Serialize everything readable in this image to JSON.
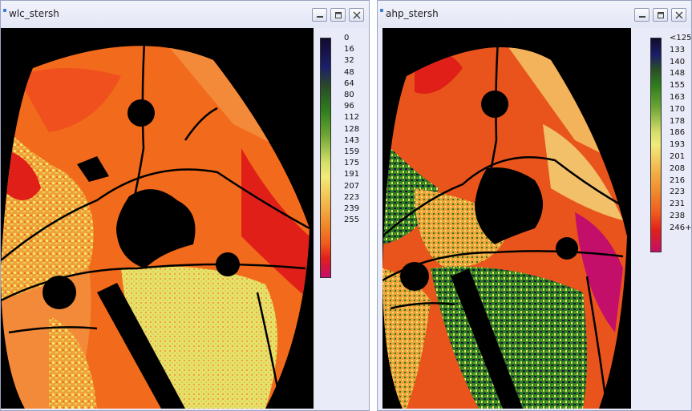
{
  "windows": [
    {
      "title": "wlc_stersh",
      "legend": [
        "0",
        "16",
        "32",
        "48",
        "64",
        "80",
        "96",
        "112",
        "128",
        "143",
        "159",
        "175",
        "191",
        "207",
        "223",
        "239",
        "255"
      ]
    },
    {
      "title": "ahp_stersh",
      "legend": [
        "<125",
        "133",
        "140",
        "148",
        "155",
        "163",
        "170",
        "178",
        "186",
        "193",
        "201",
        "208",
        "216",
        "223",
        "231",
        "238",
        "246+"
      ]
    }
  ],
  "colors": {
    "titlebar": "#e9ebf8",
    "map_background": "#000000",
    "orange": "#f26a1b",
    "red": "#e02018",
    "yellow": "#e8e071",
    "green": "#2e7d1e",
    "navy": "#1b1347",
    "magenta": "#c40f6a"
  },
  "icons": [
    "app-icon",
    "minimize-icon",
    "maximize-icon",
    "close-icon"
  ]
}
